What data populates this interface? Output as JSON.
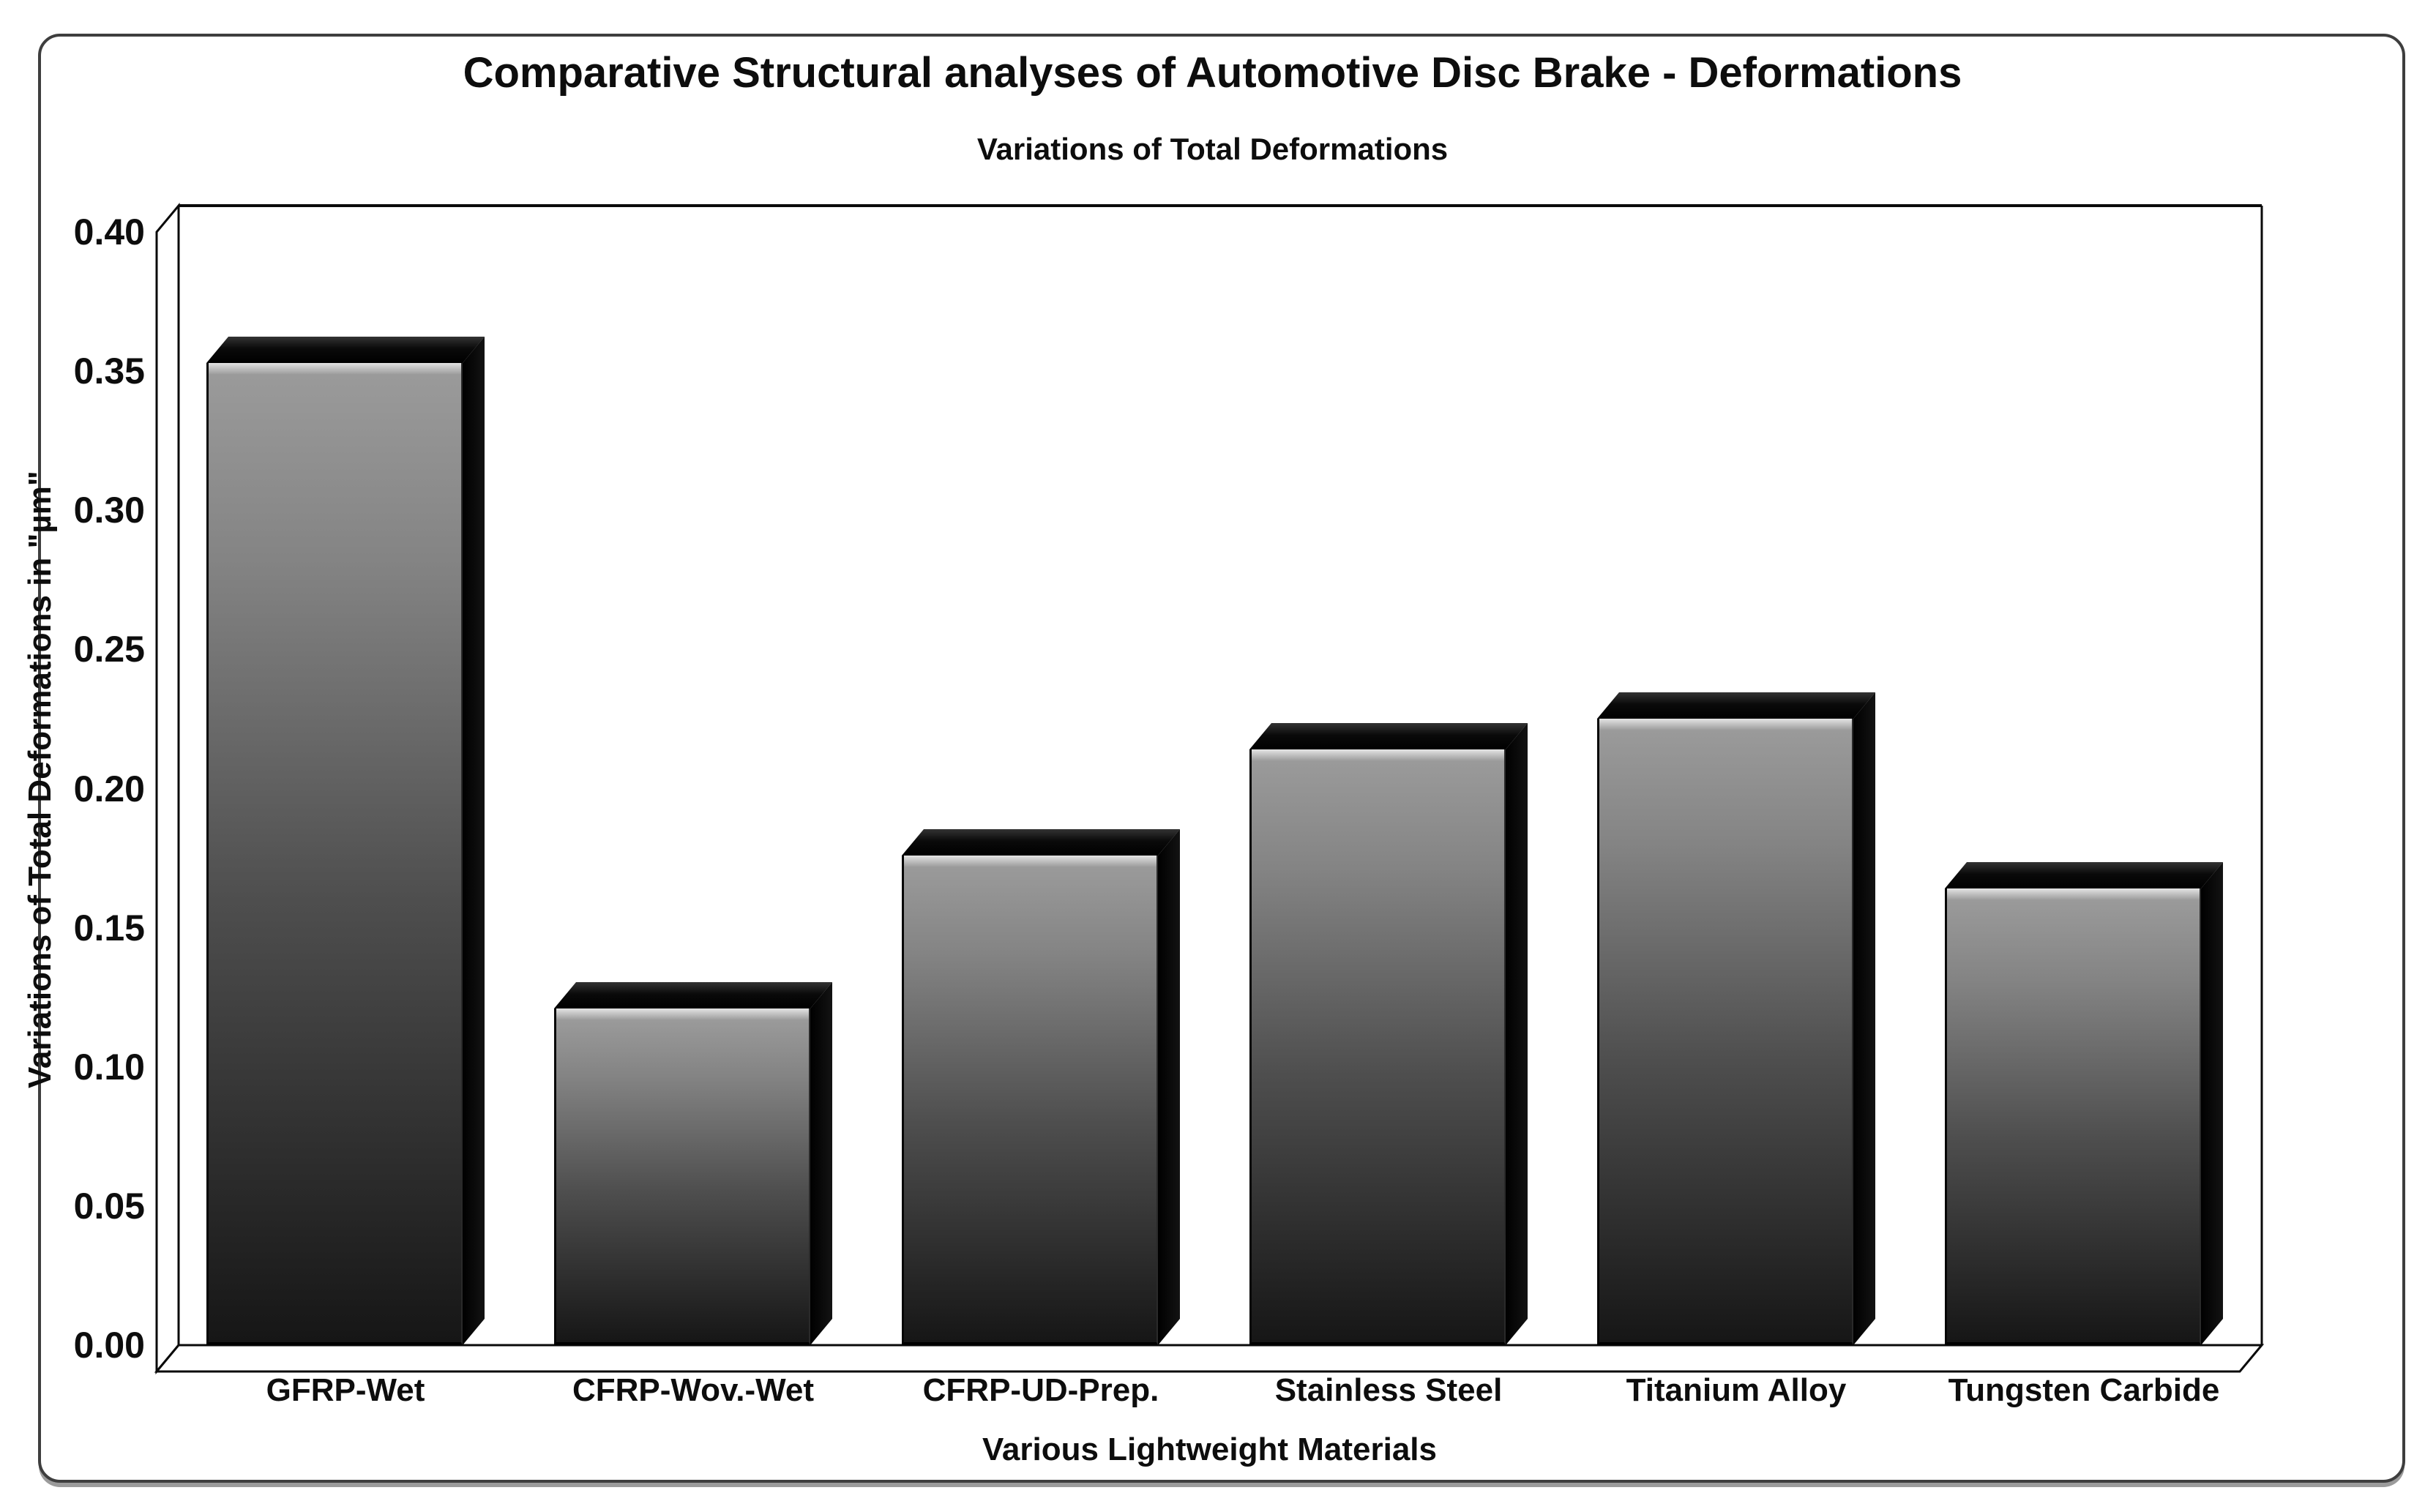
{
  "chart": {
    "title": "Comparative Structural analyses of Automotive Disc Brake - Deformations",
    "subtitle": "Variations of Total Deformations",
    "x_axis_title": "Various Lightweight Materials",
    "y_axis_title": "Variations of Total Deformations in \"µm\""
  },
  "chart_data": {
    "type": "bar",
    "title": "Comparative Structural analyses of Automotive Disc Brake - Deformations",
    "subtitle": "Variations of Total Deformations",
    "xlabel": "Various Lightweight Materials",
    "ylabel": "Variations of Total Deformations in \"µm\"",
    "categories": [
      "GFRP-Wet",
      "CFRP-Wov.-Wet",
      "CFRP-UD-Prep.",
      "Stainless Steel",
      "Titanium Alloy",
      "Tungsten Carbide"
    ],
    "values": [
      0.353,
      0.121,
      0.176,
      0.214,
      0.225,
      0.164
    ],
    "unit": "µm",
    "ylim": [
      0,
      0.4
    ],
    "ytick_step": 0.05,
    "ytick_labels": [
      "0.40",
      "0.35",
      "0.30",
      "0.25",
      "0.20",
      "0.15",
      "0.10",
      "0.05",
      "0.00"
    ],
    "grid": false,
    "legend": false,
    "style": "3d-beveled-monochrome-bars",
    "colors": {
      "bar_front_top": "#9a9a9a",
      "bar_front_bottom": "#161616",
      "bar_bevel": "#0a0a0a",
      "text": "#0d0d0d",
      "frame_border": "#3e3e3e",
      "background": "#ffffff"
    }
  }
}
